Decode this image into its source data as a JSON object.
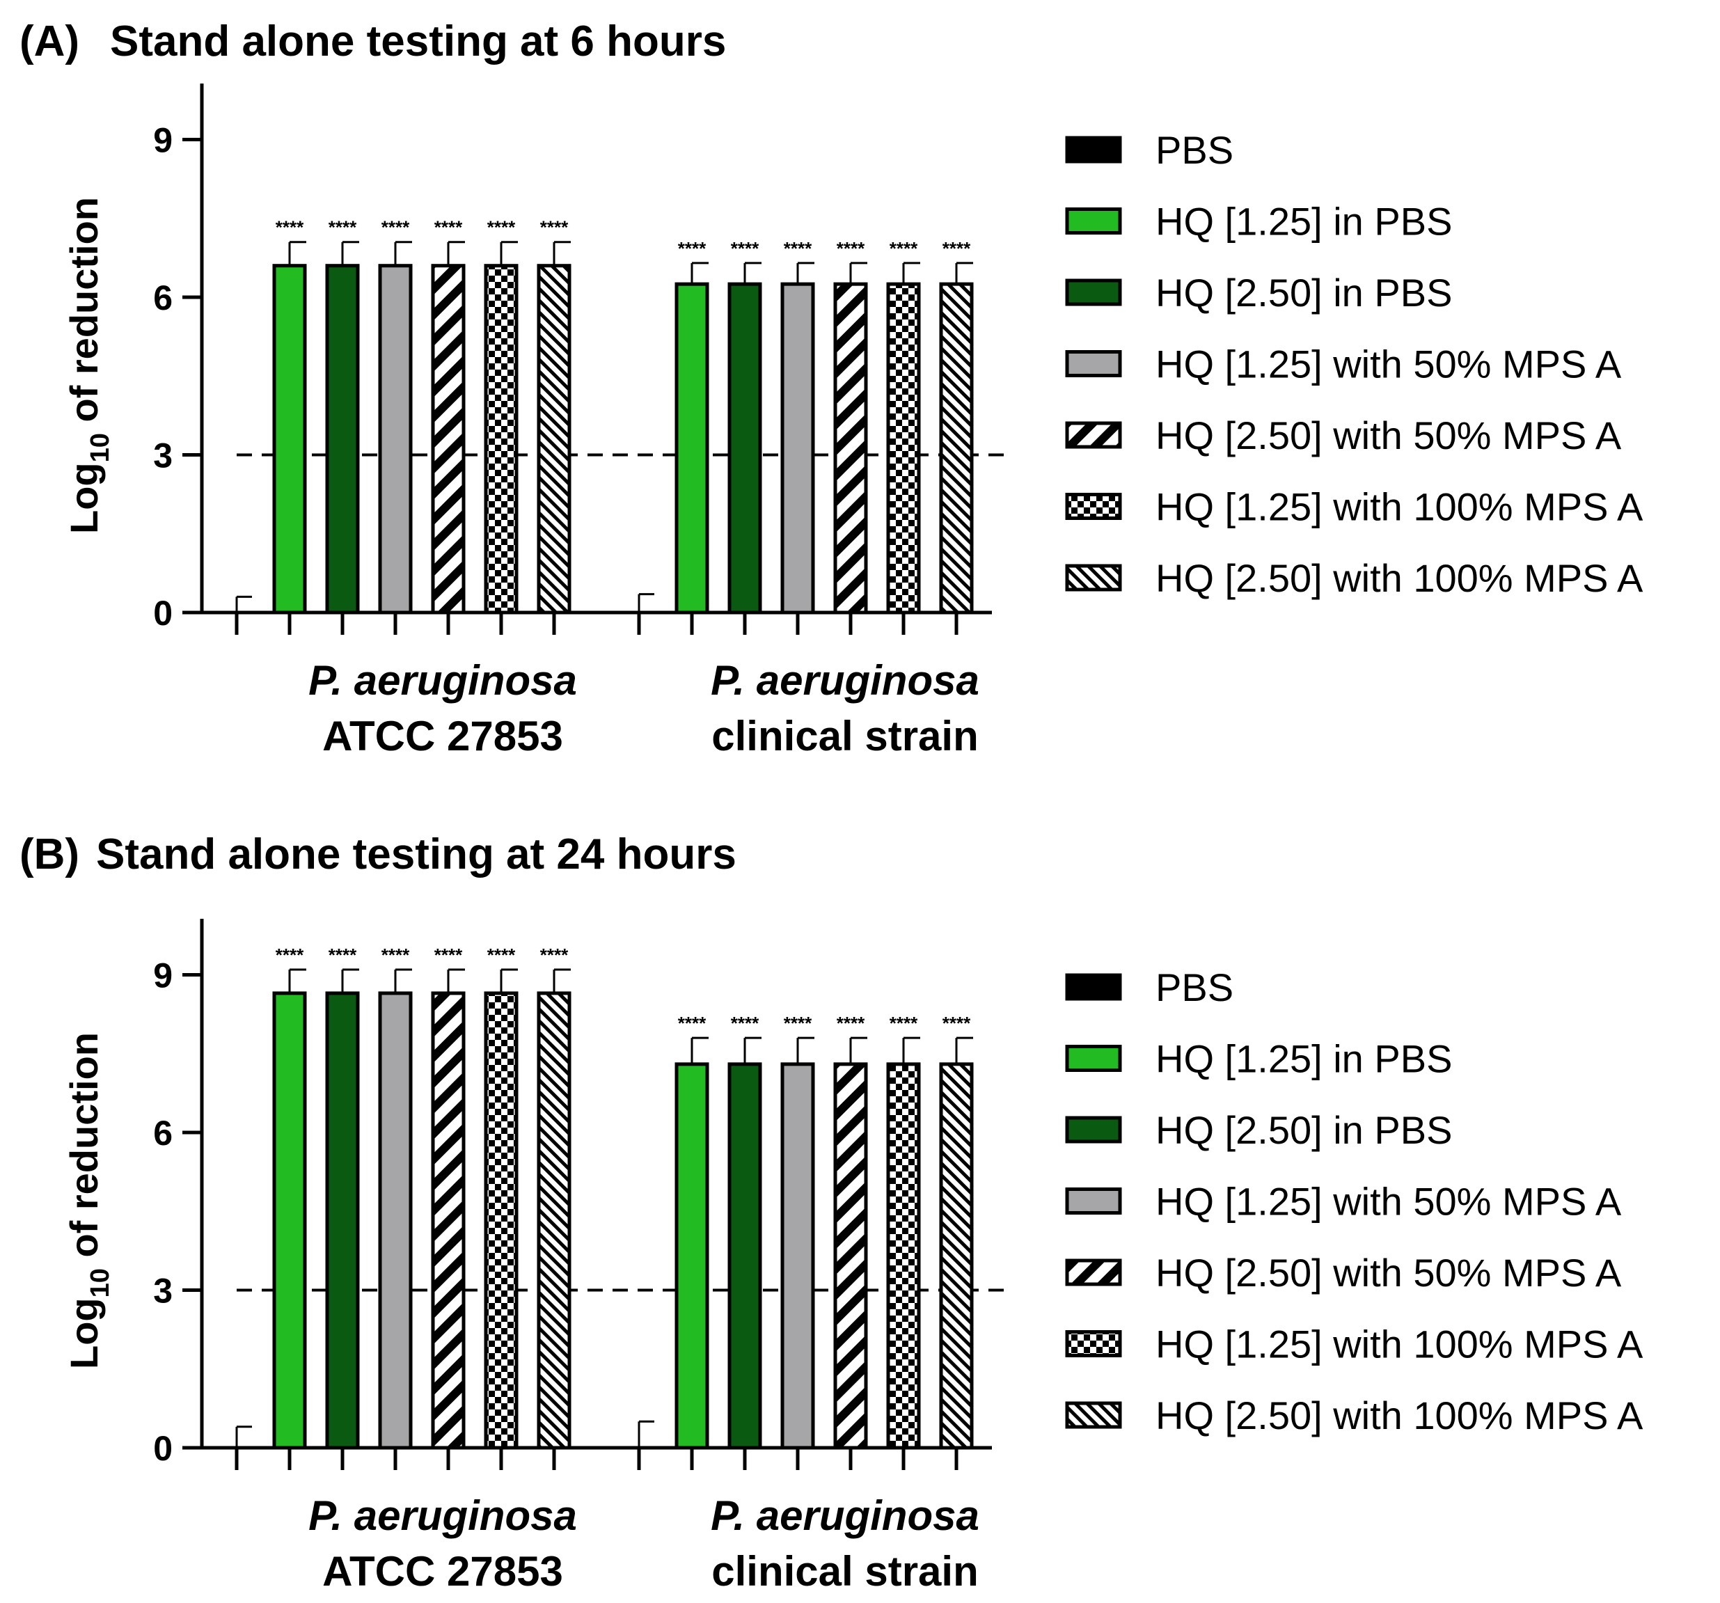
{
  "colors": {
    "pbs": "#000000",
    "hq125_pbs": "#22bb22",
    "hq250_pbs": "#0b5a12",
    "hq125_mps50": "#a6a6a8",
    "axis": "#000000"
  },
  "legend": {
    "items": [
      {
        "label": "PBS",
        "pattern": "solid-black"
      },
      {
        "label": "HQ [1.25] in PBS",
        "pattern": "solid-green"
      },
      {
        "label": "HQ [2.50] in PBS",
        "pattern": "solid-darkgreen"
      },
      {
        "label": "HQ [1.25] with 50% MPS A",
        "pattern": "solid-grey"
      },
      {
        "label": "HQ [2.50] with 50% MPS A",
        "pattern": "diag-up-bold"
      },
      {
        "label": "HQ [1.25] with 100% MPS A",
        "pattern": "checker"
      },
      {
        "label": "HQ [2.50] with 100% MPS A",
        "pattern": "diag-down-fine"
      }
    ]
  },
  "chart_data": [
    {
      "type": "bar",
      "panel_letter": "(A)",
      "title": "Stand alone testing at 6 hours",
      "ylabel_main": "Log",
      "ylabel_sub": "10",
      "ylabel_rest": " of reduction",
      "ylim": [
        0,
        10
      ],
      "yticks": [
        0,
        3,
        6,
        9
      ],
      "ytick_labels": [
        "0",
        "3",
        "6",
        "9"
      ],
      "threshold": 3,
      "groups": [
        {
          "name_italic": "P. aeruginosa",
          "name_plain": "ATCC 27853"
        },
        {
          "name_italic": "P. aeruginosa",
          "name_plain": "clinical strain"
        }
      ],
      "series": [
        {
          "name": "PBS",
          "values": [
            0,
            0
          ],
          "errors": [
            0.3,
            0.35
          ],
          "sig": [
            "",
            ""
          ]
        },
        {
          "name": "HQ [1.25] in PBS",
          "values": [
            6.6,
            6.25
          ],
          "errors": [
            0.45,
            0.4
          ],
          "sig": [
            "****",
            "****"
          ]
        },
        {
          "name": "HQ [2.50] in PBS",
          "values": [
            6.6,
            6.25
          ],
          "errors": [
            0.45,
            0.4
          ],
          "sig": [
            "****",
            "****"
          ]
        },
        {
          "name": "HQ [1.25] with 50% MPS A",
          "values": [
            6.6,
            6.25
          ],
          "errors": [
            0.45,
            0.4
          ],
          "sig": [
            "****",
            "****"
          ]
        },
        {
          "name": "HQ [2.50] with 50% MPS A",
          "values": [
            6.6,
            6.25
          ],
          "errors": [
            0.45,
            0.4
          ],
          "sig": [
            "****",
            "****"
          ]
        },
        {
          "name": "HQ [1.25] with 100% MPS A",
          "values": [
            6.6,
            6.25
          ],
          "errors": [
            0.45,
            0.4
          ],
          "sig": [
            "****",
            "****"
          ]
        },
        {
          "name": "HQ [2.50] with 100% MPS A",
          "values": [
            6.6,
            6.25
          ],
          "errors": [
            0.45,
            0.4
          ],
          "sig": [
            "****",
            "****"
          ]
        }
      ]
    },
    {
      "type": "bar",
      "panel_letter": "(B)",
      "title": "Stand alone testing at 24 hours",
      "ylabel_main": "Log",
      "ylabel_sub": "10",
      "ylabel_rest": " of reduction",
      "ylim": [
        0,
        10
      ],
      "yticks": [
        0,
        3,
        6,
        9
      ],
      "ytick_labels": [
        "0",
        "3",
        "6",
        "9"
      ],
      "threshold": 3,
      "groups": [
        {
          "name_italic": "P. aeruginosa",
          "name_plain": "ATCC 27853"
        },
        {
          "name_italic": "P. aeruginosa",
          "name_plain": "clinical strain"
        }
      ],
      "series": [
        {
          "name": "PBS",
          "values": [
            0,
            0
          ],
          "errors": [
            0.4,
            0.5
          ],
          "sig": [
            "",
            ""
          ]
        },
        {
          "name": "HQ [1.25] in PBS",
          "values": [
            8.65,
            7.3
          ],
          "errors": [
            0.45,
            0.5
          ],
          "sig": [
            "****",
            "****"
          ]
        },
        {
          "name": "HQ [2.50] in PBS",
          "values": [
            8.65,
            7.3
          ],
          "errors": [
            0.45,
            0.5
          ],
          "sig": [
            "****",
            "****"
          ]
        },
        {
          "name": "HQ [1.25] with 50% MPS A",
          "values": [
            8.65,
            7.3
          ],
          "errors": [
            0.45,
            0.5
          ],
          "sig": [
            "****",
            "****"
          ]
        },
        {
          "name": "HQ [2.50] with 50% MPS A",
          "values": [
            8.65,
            7.3
          ],
          "errors": [
            0.45,
            0.5
          ],
          "sig": [
            "****",
            "****"
          ]
        },
        {
          "name": "HQ [1.25] with 100% MPS A",
          "values": [
            8.65,
            7.3
          ],
          "errors": [
            0.45,
            0.5
          ],
          "sig": [
            "****",
            "****"
          ]
        },
        {
          "name": "HQ [2.50] with 100% MPS A",
          "values": [
            8.65,
            7.3
          ],
          "errors": [
            0.45,
            0.5
          ],
          "sig": [
            "****",
            "****"
          ]
        }
      ]
    }
  ]
}
